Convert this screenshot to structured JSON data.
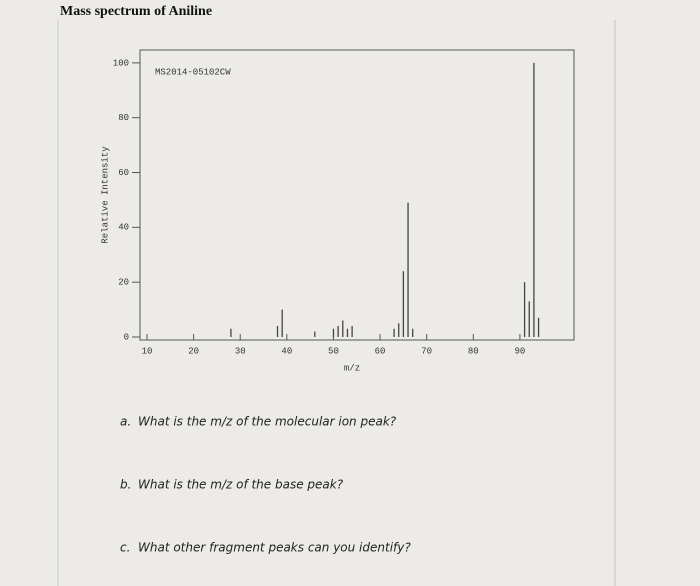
{
  "title": "Mass spectrum of Aniline",
  "chart_data": {
    "type": "stick",
    "annotation": "MS2014-05102CW",
    "x_label": "m/z",
    "y_label": "Relative Intensity",
    "x": [
      28,
      38,
      39,
      46,
      50,
      51,
      52,
      53,
      54,
      63,
      64,
      65,
      66,
      67,
      91,
      92,
      93,
      94
    ],
    "values": [
      3,
      4,
      10,
      2,
      3,
      4,
      6,
      3,
      4,
      3,
      5,
      24,
      49,
      3,
      20,
      13,
      100,
      7
    ],
    "color": "#444444",
    "xlim": [
      8.5,
      101.6
    ],
    "xticks": [
      10,
      20,
      30,
      40,
      50,
      60,
      70,
      80,
      90
    ],
    "ylim": [
      -1.1,
      104.7
    ],
    "yticks": [
      0,
      20,
      40,
      60,
      80,
      100
    ]
  },
  "questions": [
    {
      "label": "a.",
      "text": "What is the m/z of the molecular ion peak?"
    },
    {
      "label": "b.",
      "text": "What is the m/z of the base peak?"
    },
    {
      "label": "c.",
      "text": "What other fragment peaks can you identify?"
    }
  ]
}
